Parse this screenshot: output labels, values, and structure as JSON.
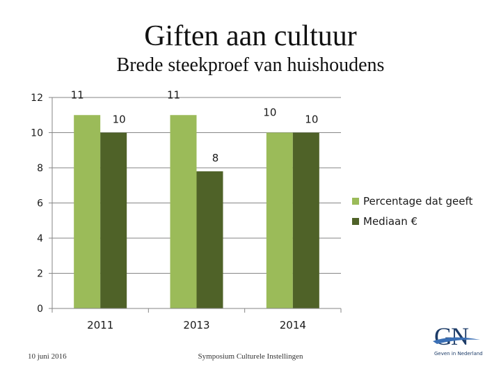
{
  "slide": {
    "title": "Giften aan cultuur",
    "subtitle": "Brede steekproef van huishoudens",
    "footer_left": "10 juni 2016",
    "footer_center": "Symposium Culturele Instellingen",
    "logo_text": "GN",
    "logo_tagline": "Geven in Nederland"
  },
  "colors": {
    "series_1": "#9bbb59",
    "series_2": "#4f6228",
    "axis": "#868686",
    "grid": "#868686"
  },
  "chart_data": {
    "type": "bar",
    "title": "",
    "xlabel": "",
    "ylabel": "",
    "categories": [
      "2011",
      "2013",
      "2014"
    ],
    "ylim": [
      0,
      12
    ],
    "yticks": [
      0,
      2,
      4,
      6,
      8,
      10,
      12
    ],
    "grid": true,
    "legend_position": "right",
    "series": [
      {
        "name": "Percentage dat geeft",
        "values": [
          11,
          11,
          10
        ],
        "labels": [
          "11",
          "11",
          "10"
        ]
      },
      {
        "name": "Mediaan €",
        "values": [
          10,
          7.8,
          10
        ],
        "labels": [
          "10",
          "8",
          "10"
        ]
      }
    ]
  }
}
